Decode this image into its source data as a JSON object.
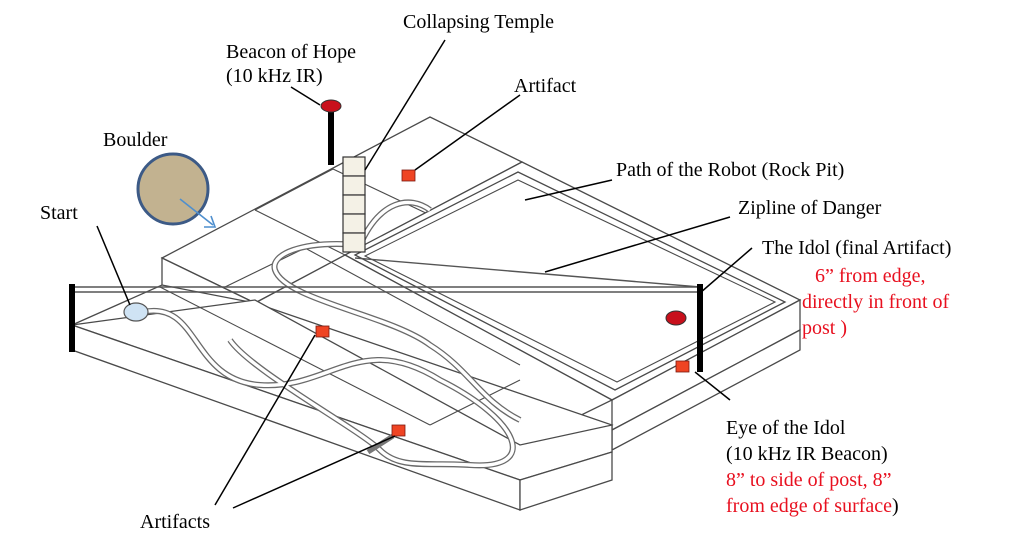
{
  "labels": {
    "collapsing_temple": "Collapsing Temple",
    "beacon_line1": "Beacon of Hope",
    "beacon_line2": "(10 kHz IR)",
    "artifact": "Artifact",
    "boulder": "Boulder",
    "path_robot": "Path of the Robot (Rock Pit)",
    "start": "Start",
    "zipline": "Zipline of Danger",
    "idol_title": "The Idol  (final Artifact)",
    "idol_note_1": "6” from edge,",
    "idol_note_2": "directly in front of",
    "idol_note_3": "post )",
    "eye_line1": "Eye of the Idol",
    "eye_line2": " (10 kHz IR Beacon)",
    "eye_note_1": "8” to side of post, 8”",
    "eye_note_2a": "from edge of surface",
    "eye_note_2b": ")",
    "artifacts": "Artifacts"
  },
  "colors": {
    "note_red": "#e8101f",
    "artifact_red": "#ef4423",
    "beacon_red": "#c8101c",
    "boulder_fill": "#c2b290",
    "boulder_edge": "#3c5a86",
    "start_fill": "#cfe3f4",
    "arrow_blue": "#4f8fce"
  }
}
